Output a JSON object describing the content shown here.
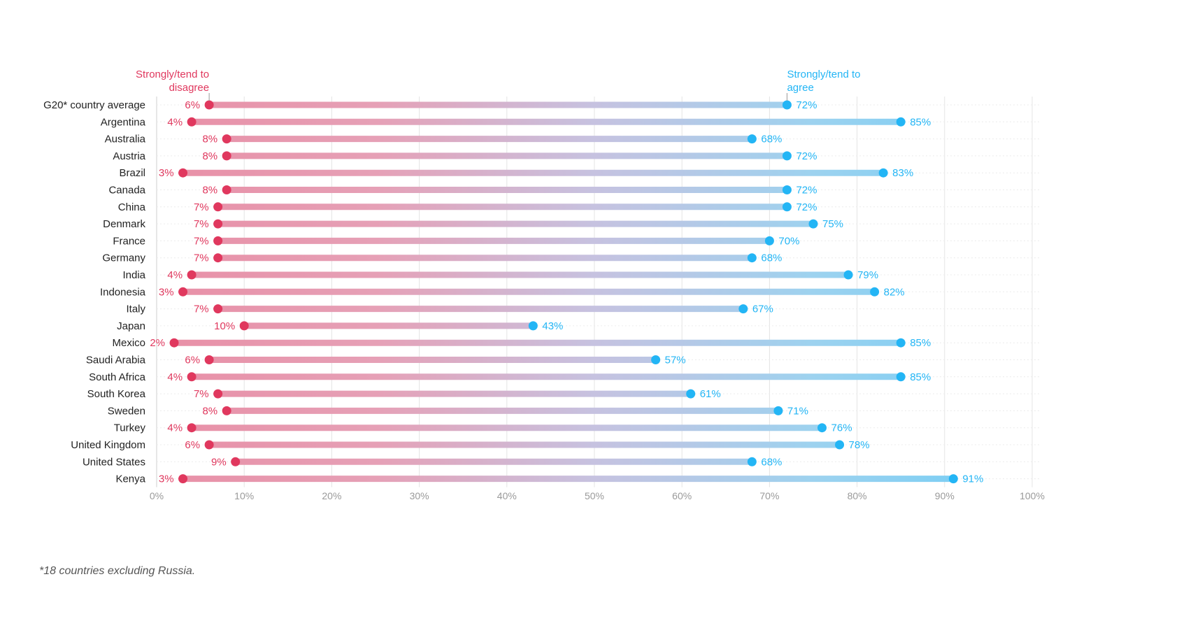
{
  "chart_data": {
    "type": "dumbbell",
    "xlim": [
      0,
      100
    ],
    "x_ticks": [
      0,
      10,
      20,
      30,
      40,
      50,
      60,
      70,
      80,
      90,
      100
    ],
    "x_tick_labels": [
      "0%",
      "10%",
      "20%",
      "30%",
      "40%",
      "50%",
      "60%",
      "70%",
      "80%",
      "90%",
      "100%"
    ],
    "grid": true,
    "series": [
      {
        "name": "Strongly/tend to disagree",
        "label_line1": "Strongly/tend to",
        "label_line2": "disagree",
        "color": "#e0385e"
      },
      {
        "name": "Strongly/tend to agree",
        "label_line1": "Strongly/tend to",
        "label_line2": "agree",
        "color": "#23b5f5"
      }
    ],
    "categories": [
      "G20* country average",
      "Argentina",
      "Australia",
      "Austria",
      "Brazil",
      "Canada",
      "China",
      "Denmark",
      "France",
      "Germany",
      "India",
      "Indonesia",
      "Italy",
      "Japan",
      "Mexico",
      "Saudi Arabia",
      "South Africa",
      "South Korea",
      "Sweden",
      "Turkey",
      "United Kingdom",
      "United States",
      "Kenya"
    ],
    "disagree": [
      6,
      4,
      8,
      8,
      3,
      8,
      7,
      7,
      7,
      7,
      4,
      3,
      7,
      10,
      2,
      6,
      4,
      7,
      8,
      4,
      6,
      9,
      3
    ],
    "agree": [
      72,
      85,
      68,
      72,
      83,
      72,
      72,
      75,
      70,
      68,
      79,
      82,
      67,
      43,
      85,
      57,
      85,
      61,
      71,
      76,
      78,
      68,
      91
    ],
    "disagree_labels": [
      "6%",
      "4%",
      "8%",
      "8%",
      "3%",
      "8%",
      "7%",
      "7%",
      "7%",
      "7%",
      "4%",
      "3%",
      "7%",
      "10%",
      "2%",
      "6%",
      "4%",
      "7%",
      "8%",
      "4%",
      "6%",
      "9%",
      "3%"
    ],
    "agree_labels": [
      "72%",
      "85%",
      "68%",
      "72%",
      "83%",
      "72%",
      "72%",
      "75%",
      "70%",
      "68%",
      "79%",
      "82%",
      "67%",
      "43%",
      "85%",
      "57%",
      "85%",
      "61%",
      "71%",
      "76%",
      "78%",
      "68%",
      "91%"
    ],
    "footnote": "*18 countries excluding Russia."
  }
}
